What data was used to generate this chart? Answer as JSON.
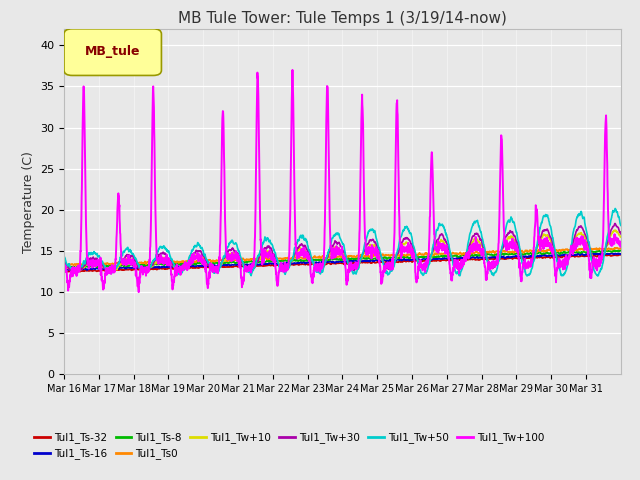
{
  "title": "MB Tule Tower: Tule Temps 1 (3/19/14-now)",
  "ylabel": "Temperature (C)",
  "ylim": [
    0,
    42
  ],
  "yticks": [
    0,
    5,
    10,
    15,
    20,
    25,
    30,
    35,
    40
  ],
  "xlim": [
    0,
    16
  ],
  "xtick_labels": [
    "Mar 16",
    "Mar 17",
    "Mar 18",
    "Mar 19",
    "Mar 20",
    "Mar 21",
    "Mar 22",
    "Mar 23",
    "Mar 24",
    "Mar 25",
    "Mar 26",
    "Mar 27",
    "Mar 28",
    "Mar 29",
    "Mar 30",
    "Mar 31"
  ],
  "n_days": 16,
  "background_color": "#e8e8e8",
  "plot_bg_color": "#e8e8e8",
  "series": [
    {
      "label": "Tul1_Ts-32",
      "color": "#cc0000"
    },
    {
      "label": "Tul1_Ts-16",
      "color": "#0000cc"
    },
    {
      "label": "Tul1_Ts-8",
      "color": "#00bb00"
    },
    {
      "label": "Tul1_Ts0",
      "color": "#ff8800"
    },
    {
      "label": "Tul1_Tw+10",
      "color": "#dddd00"
    },
    {
      "label": "Tul1_Tw+30",
      "color": "#aa00aa"
    },
    {
      "label": "Tul1_Tw+50",
      "color": "#00cccc"
    },
    {
      "label": "Tul1_Tw+100",
      "color": "#ff00ff"
    }
  ],
  "legend_box_color": "#ffff99",
  "legend_box_edge": "#999900",
  "legend_label": "MB_tule",
  "legend_label_color": "#880000",
  "spike_days": [
    0,
    1,
    2,
    4,
    5,
    6,
    7,
    8,
    9,
    10,
    12,
    13,
    15
  ],
  "spike_heights": [
    35,
    22,
    35,
    32,
    36,
    37,
    35,
    34,
    33,
    27,
    29,
    20,
    31
  ]
}
